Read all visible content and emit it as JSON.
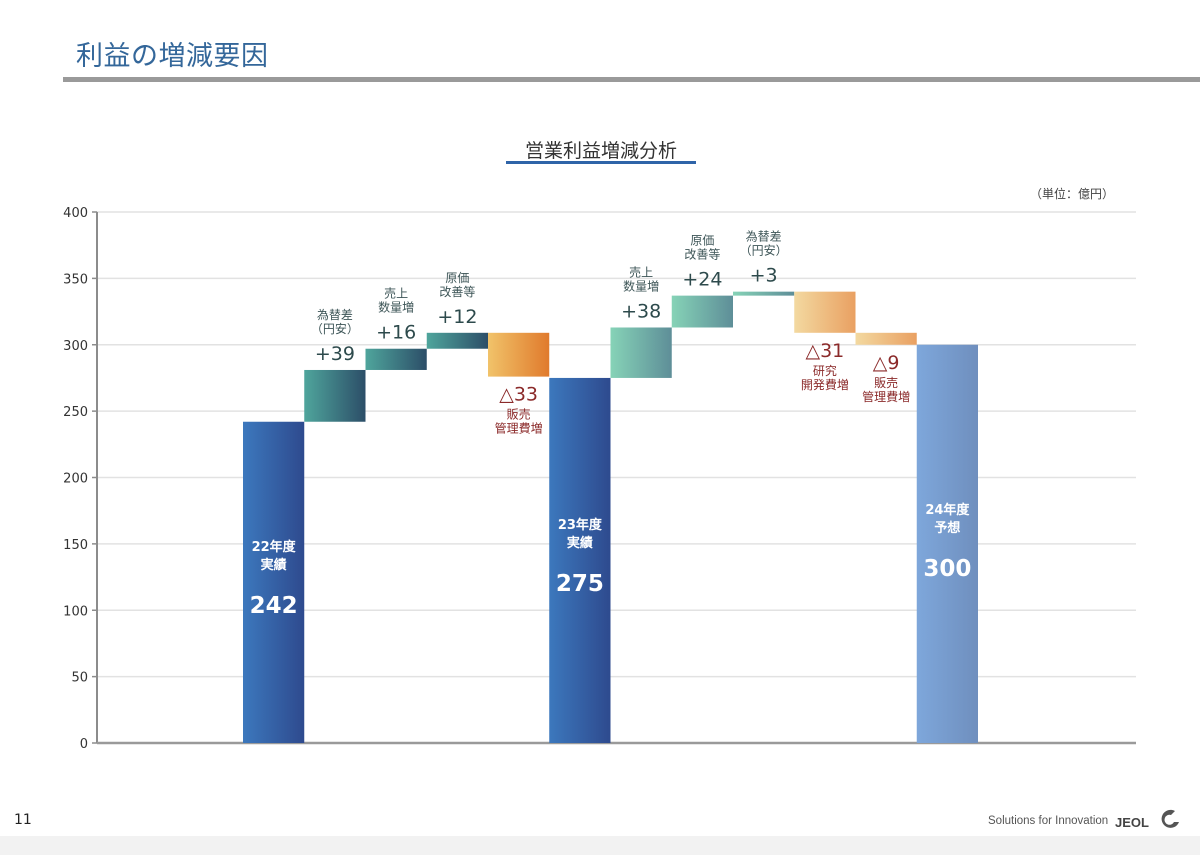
{
  "page": {
    "title": "利益の増減要因",
    "page_number": "11",
    "tagline": "Solutions for Innovation",
    "logo_text": "JEOL"
  },
  "chart_data": {
    "type": "waterfall",
    "title": "営業利益増減分析",
    "unit": "（単位：億円）",
    "ylim": [
      0,
      400
    ],
    "yticks": [
      "0",
      "50",
      "100",
      "150",
      "200",
      "250",
      "300",
      "350",
      "400"
    ],
    "grid": true,
    "colors": {
      "total_dark": "#2e4a8e",
      "total_light": "#3c78bd",
      "forecast_dark": "#6f8fbe",
      "forecast_light": "#7ea7db",
      "increase_a_dark": "#2c4e68",
      "increase_a_light": "#4fa59c",
      "increase_b_dark": "#5e8e98",
      "increase_b_light": "#86d3b7",
      "decrease_a_dark": "#e07a2c",
      "decrease_a_light": "#f1c36a",
      "decrease_b_dark": "#e9a062",
      "decrease_b_light": "#f3d9a0",
      "increase_text": "#2d4a4c",
      "decrease_text": "#8b2a2a"
    },
    "steps": [
      {
        "kind": "total",
        "name": "22年度",
        "sub": "実績",
        "value": 242,
        "label": "242",
        "base": 0,
        "top": 242
      },
      {
        "kind": "increase",
        "group": "a",
        "name": "為替差",
        "sub": "（円安）",
        "value": 39,
        "label": "+39",
        "base": 242,
        "top": 281
      },
      {
        "kind": "increase",
        "group": "a",
        "name": "売上",
        "sub": "数量増",
        "value": 16,
        "label": "+16",
        "base": 281,
        "top": 297
      },
      {
        "kind": "increase",
        "group": "a",
        "name": "原価",
        "sub": "改善等",
        "value": 12,
        "label": "+12",
        "base": 297,
        "top": 309
      },
      {
        "kind": "decrease",
        "group": "a",
        "name": "販売",
        "sub": "管理費増",
        "value": -33,
        "label": "△33",
        "base": 276,
        "top": 309
      },
      {
        "kind": "total",
        "name": "23年度",
        "sub": "実績",
        "value": 275,
        "label": "275",
        "base": 0,
        "top": 275
      },
      {
        "kind": "increase",
        "group": "b",
        "name": "売上",
        "sub": "数量増",
        "value": 38,
        "label": "+38",
        "base": 275,
        "top": 313
      },
      {
        "kind": "increase",
        "group": "b",
        "name": "原価",
        "sub": "改善等",
        "value": 24,
        "label": "+24",
        "base": 313,
        "top": 337
      },
      {
        "kind": "increase",
        "group": "b",
        "name": "為替差",
        "sub": "（円安）",
        "value": 3,
        "label": "+3",
        "base": 337,
        "top": 340
      },
      {
        "kind": "decrease",
        "group": "b",
        "name": "研究",
        "sub": "開発費増",
        "value": -31,
        "label": "△31",
        "base": 309,
        "top": 340
      },
      {
        "kind": "decrease",
        "group": "b",
        "name": "販売",
        "sub": "管理費増",
        "value": -9,
        "label": "△9",
        "base": 300,
        "top": 309
      },
      {
        "kind": "forecast",
        "name": "24年度",
        "sub": "予想",
        "value": 300,
        "label": "300",
        "base": 0,
        "top": 300
      }
    ]
  }
}
